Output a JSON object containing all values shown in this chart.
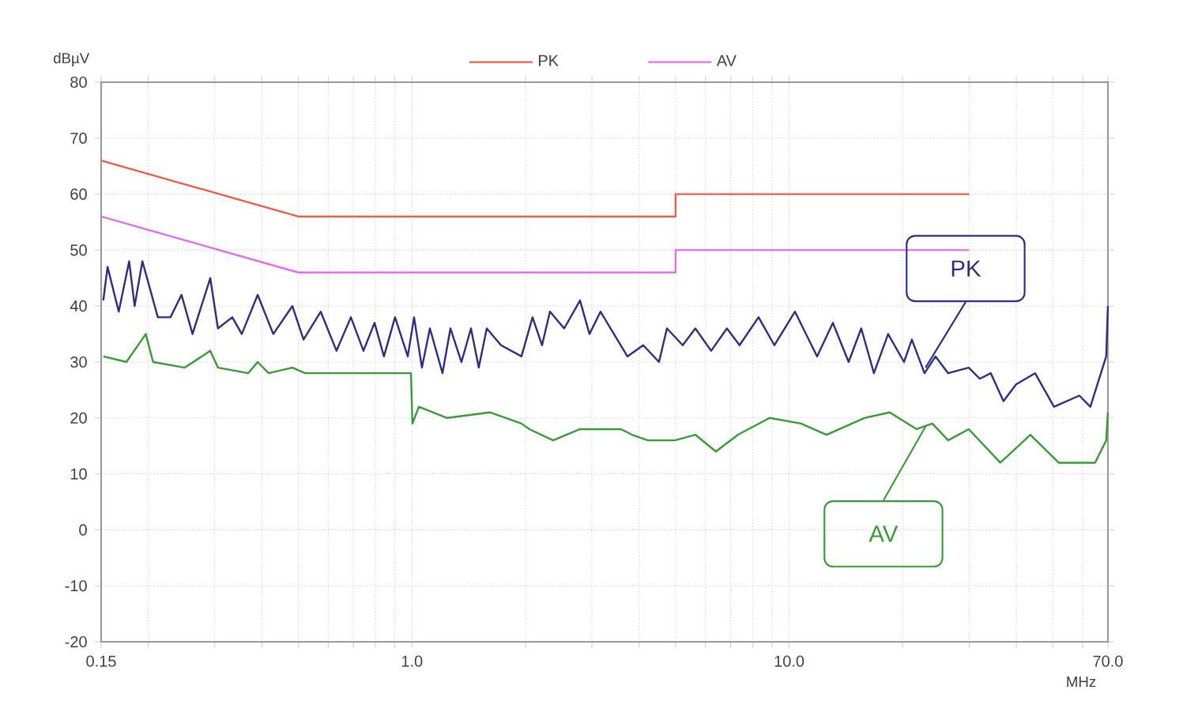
{
  "chart_data": {
    "type": "line",
    "xlabel": "MHz",
    "ylabel": "dBµV",
    "log": "x",
    "grid": true,
    "legend": "top",
    "xlim": [
      0.15,
      70
    ],
    "ylim": [
      -20,
      80
    ],
    "xticks": [
      {
        "value": 0.15,
        "label": "0.15"
      },
      {
        "value": 0.2,
        "label": null
      },
      {
        "value": 0.3,
        "label": null
      },
      {
        "value": 0.4,
        "label": null
      },
      {
        "value": 0.5,
        "label": null
      },
      {
        "value": 0.6,
        "label": null
      },
      {
        "value": 0.7,
        "label": null
      },
      {
        "value": 0.8,
        "label": null
      },
      {
        "value": 0.9,
        "label": null
      },
      {
        "value": 1,
        "label": "1.0"
      },
      {
        "value": 2,
        "label": null
      },
      {
        "value": 3,
        "label": null
      },
      {
        "value": 4,
        "label": null
      },
      {
        "value": 5,
        "label": null
      },
      {
        "value": 6,
        "label": null
      },
      {
        "value": 7,
        "label": null
      },
      {
        "value": 8,
        "label": null
      },
      {
        "value": 9,
        "label": null
      },
      {
        "value": 10,
        "label": "10.0"
      },
      {
        "value": 20,
        "label": null
      },
      {
        "value": 30,
        "label": null
      },
      {
        "value": 40,
        "label": null
      },
      {
        "value": 50,
        "label": null
      },
      {
        "value": 60,
        "label": null
      },
      {
        "value": 70,
        "label": "70.0"
      }
    ],
    "yticks": [
      -20,
      -10,
      0,
      10,
      20,
      30,
      40,
      50,
      60,
      70,
      80
    ],
    "series": [
      {
        "name": "PK",
        "color": "#e8604c",
        "x": [
          0.15,
          0.5,
          5,
          5,
          30
        ],
        "values": [
          66,
          56,
          56,
          60,
          60
        ]
      },
      {
        "name": "AV",
        "color": "#e070e8",
        "x": [
          0.15,
          0.5,
          5,
          5,
          30
        ],
        "values": [
          56,
          46,
          46,
          50,
          50
        ]
      },
      {
        "color": "#2e2e84",
        "x": [
          0.152,
          0.156,
          0.167,
          0.178,
          0.184,
          0.193,
          0.212,
          0.229,
          0.245,
          0.262,
          0.292,
          0.306,
          0.334,
          0.354,
          0.39,
          0.429,
          0.482,
          0.516,
          0.573,
          0.631,
          0.689,
          0.744,
          0.796,
          0.843,
          0.902,
          0.975,
          1.013,
          1.063,
          1.116,
          1.205,
          1.265,
          1.353,
          1.434,
          1.504,
          1.579,
          1.722,
          1.952,
          2.088,
          2.213,
          2.322,
          2.533,
          2.79,
          2.956,
          3.162,
          3.726,
          4.104,
          4.519,
          4.742,
          5.223,
          5.641,
          6.212,
          6.841,
          7.389,
          8.297,
          9.137,
          10.36,
          11.86,
          13.06,
          14.38,
          15.53,
          16.78,
          18.3,
          20.16,
          21.15,
          22.85,
          24.44,
          26.4,
          29.93,
          32.02,
          34.25,
          37.0,
          39.98,
          44.87,
          50.37,
          58.8,
          62.89,
          69.27,
          70
        ],
        "values": [
          41,
          47,
          39,
          48,
          40,
          48,
          38,
          38,
          42,
          35,
          45,
          36,
          38,
          35,
          42,
          35,
          40,
          34,
          39,
          32,
          38,
          32,
          37,
          31,
          38,
          31,
          38,
          29,
          36,
          28,
          36,
          30,
          36,
          29,
          36,
          33,
          31,
          38,
          33,
          39,
          36,
          41,
          35,
          39,
          31,
          33,
          30,
          36,
          33,
          36,
          32,
          36,
          33,
          38,
          33,
          39,
          31,
          37,
          30,
          36,
          28,
          35,
          30,
          34,
          28,
          31,
          28,
          29,
          27,
          28,
          23,
          26,
          28,
          22,
          24,
          22,
          31,
          40
        ]
      },
      {
        "color": "#3a9a3a",
        "x": [
          0.152,
          0.175,
          0.197,
          0.206,
          0.25,
          0.292,
          0.306,
          0.368,
          0.39,
          0.417,
          0.482,
          0.521,
          0.656,
          0.994,
          1.003,
          1.043,
          1.24,
          1.609,
          1.952,
          2.048,
          2.367,
          2.79,
          3.254,
          3.584,
          3.834,
          4.224,
          4.976,
          5.641,
          6.395,
          7.318,
          8.876,
          10.76,
          12.56,
          15.83,
          18.48,
          21.77,
          23.97,
          26.4,
          29.93,
          36.29,
          43.6,
          51.85,
          64.73,
          69.27,
          70
        ],
        "values": [
          31,
          30,
          35,
          30,
          29,
          32,
          29,
          28,
          30,
          28,
          29,
          28,
          28,
          28,
          19,
          22,
          20,
          21,
          19,
          18,
          16,
          18,
          18,
          18,
          17,
          16,
          16,
          17,
          14,
          17,
          20,
          19,
          17,
          20,
          21,
          18,
          19,
          16,
          18,
          12,
          17,
          12,
          12,
          16,
          21
        ]
      }
    ],
    "annotations": [
      {
        "text": "PK",
        "x": 23,
        "y": 29
      },
      {
        "text": "AV",
        "x": 23,
        "y": 18.5
      }
    ]
  }
}
